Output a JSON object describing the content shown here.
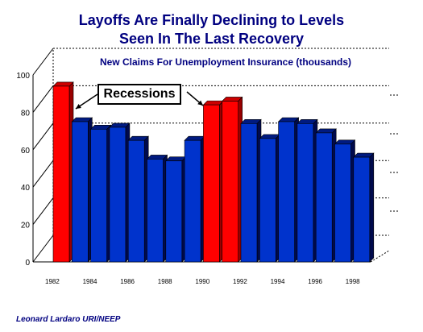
{
  "title_line1": "Layoffs Are Finally Declining to Levels",
  "title_line2": "Seen In The Last Recovery",
  "footer": "Leonard Lardaro  URI/NEEP",
  "annotation": "Recessions",
  "chart_data": {
    "type": "bar",
    "subtitle": "New Claims For Unemployment Insurance (thousands)",
    "categories": [
      "1982",
      "1983",
      "1984",
      "1985",
      "1986",
      "1987",
      "1988",
      "1989",
      "1990",
      "1991",
      "1992",
      "1993",
      "1994",
      "1995",
      "1996",
      "1997",
      "1998"
    ],
    "x_tick_labels": [
      "1982",
      "",
      "1984",
      "",
      "1986",
      "",
      "1988",
      "",
      "1990",
      "",
      "1992",
      "",
      "1994",
      "",
      "1996",
      "",
      "1998"
    ],
    "values": [
      94,
      75,
      71,
      72,
      65,
      55,
      54,
      65,
      84,
      86,
      74,
      66,
      75,
      74,
      69,
      63,
      56
    ],
    "recession_years": [
      "1982",
      "1990",
      "1991"
    ],
    "ylim": [
      0,
      100
    ],
    "yticks": [
      0,
      20,
      40,
      60,
      80,
      100
    ],
    "grid": "dashed horizontal",
    "colors": {
      "normal": "#0033cc",
      "recession": "#ff0000",
      "text": "#000080"
    }
  }
}
